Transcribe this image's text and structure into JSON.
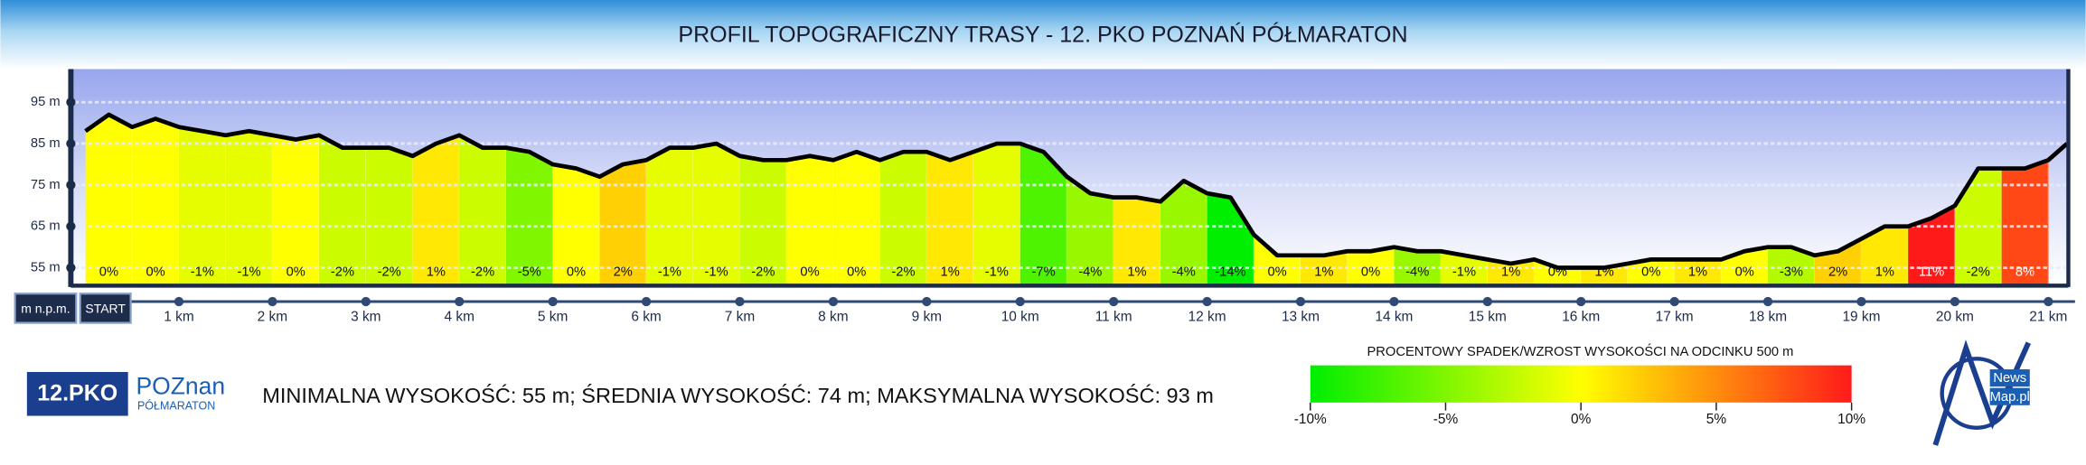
{
  "chart_data": {
    "type": "area",
    "title": "PROFIL TOPOGRAFICZNY TRASY - 12. PKO POZNAŃ PÓŁMARATON",
    "x": [
      0,
      0.25,
      0.5,
      0.75,
      1,
      1.25,
      1.5,
      1.75,
      2,
      2.25,
      2.5,
      2.75,
      3,
      3.25,
      3.5,
      3.75,
      4,
      4.25,
      4.5,
      4.75,
      5,
      5.25,
      5.5,
      5.75,
      6,
      6.25,
      6.5,
      6.75,
      7,
      7.25,
      7.5,
      7.75,
      8,
      8.25,
      8.5,
      8.75,
      9,
      9.25,
      9.5,
      9.75,
      10,
      10.25,
      10.5,
      10.75,
      11,
      11.25,
      11.5,
      11.75,
      12,
      12.25,
      12.5,
      12.75,
      13,
      13.25,
      13.5,
      13.75,
      14,
      14.25,
      14.5,
      14.75,
      15,
      15.25,
      15.5,
      15.75,
      16,
      16.25,
      16.5,
      16.75,
      17,
      17.25,
      17.5,
      17.75,
      18,
      18.25,
      18.5,
      18.75,
      19,
      19.25,
      19.5,
      19.75,
      20,
      20.25,
      20.5,
      20.75,
      21,
      21.2
    ],
    "values": [
      88,
      92,
      89,
      91,
      89,
      88,
      87,
      88,
      87,
      86,
      87,
      84,
      84,
      84,
      82,
      85,
      87,
      84,
      84,
      83,
      80,
      79,
      77,
      80,
      81,
      84,
      84,
      85,
      82,
      81,
      81,
      82,
      81,
      83,
      81,
      83,
      83,
      81,
      83,
      85,
      85,
      83,
      77,
      73,
      72,
      72,
      71,
      76,
      73,
      72,
      63,
      58,
      58,
      58,
      59,
      59,
      60,
      59,
      59,
      58,
      57,
      56,
      57,
      55,
      55,
      55,
      56,
      57,
      57,
      57,
      57,
      59,
      60,
      60,
      58,
      59,
      62,
      65,
      65,
      67,
      70,
      79,
      79,
      79,
      81,
      85
    ],
    "line_color": "#000000",
    "xlim": [
      0,
      21.2
    ],
    "xticks": [
      {
        "value": 1,
        "label": "1 km"
      },
      {
        "value": 2,
        "label": "2 km"
      },
      {
        "value": 3,
        "label": "3 km"
      },
      {
        "value": 4,
        "label": "4 km"
      },
      {
        "value": 5,
        "label": "5 km"
      },
      {
        "value": 6,
        "label": "6 km"
      },
      {
        "value": 7,
        "label": "7 km"
      },
      {
        "value": 8,
        "label": "8 km"
      },
      {
        "value": 9,
        "label": "9 km"
      },
      {
        "value": 10,
        "label": "10 km"
      },
      {
        "value": 11,
        "label": "11 km"
      },
      {
        "value": 12,
        "label": "12 km"
      },
      {
        "value": 13,
        "label": "13 km"
      },
      {
        "value": 14,
        "label": "14 km"
      },
      {
        "value": 15,
        "label": "15 km"
      },
      {
        "value": 16,
        "label": "16 km"
      },
      {
        "value": 17,
        "label": "17 km"
      },
      {
        "value": 18,
        "label": "18 km"
      },
      {
        "value": 19,
        "label": "19 km"
      },
      {
        "value": 20,
        "label": "20 km"
      },
      {
        "value": 21,
        "label": "21 km"
      }
    ],
    "ylim": [
      51,
      103
    ],
    "yticks": [
      {
        "value": 55,
        "label": "55 m"
      },
      {
        "value": 65,
        "label": "65 m"
      },
      {
        "value": 75,
        "label": "75 m"
      },
      {
        "value": 85,
        "label": "85 m"
      },
      {
        "value": 95,
        "label": "95 m"
      }
    ],
    "grid": true,
    "y_unit_label": "m n.p.m.",
    "start_label": "START",
    "segments": {
      "values": [
        0,
        0,
        -1,
        -1,
        0,
        -2,
        -2,
        1,
        -2,
        -5,
        0,
        2,
        -1,
        -1,
        -2,
        0,
        0,
        -2,
        1,
        -1,
        -7,
        -4,
        1,
        -4,
        -14,
        0,
        1,
        0,
        -4,
        -1,
        1,
        0,
        1,
        0,
        1,
        0,
        -3,
        2,
        1,
        11,
        -2,
        8
      ],
      "value_labels": [
        "0%",
        "0%",
        "-1%",
        "-1%",
        "0%",
        "-2%",
        "-2%",
        "1%",
        "-2%",
        "-5%",
        "0%",
        "2%",
        "-1%",
        "-1%",
        "-2%",
        "0%",
        "0%",
        "-2%",
        "1%",
        "-1%",
        "-7%",
        "-4%",
        "1%",
        "-4%",
        "-14%",
        "0%",
        "1%",
        "0%",
        "-4%",
        "-1%",
        "1%",
        "0%",
        "1%",
        "0%",
        "1%",
        "0%",
        "-3%",
        "2%",
        "1%",
        "11%",
        "-2%",
        "8%"
      ]
    },
    "colorscale": {
      "title": "PROCENTOWY SPADEK/WZROST WYSOKOŚCI NA ODCINKU 500 m",
      "range": [
        -10,
        10
      ],
      "colors": [
        "#00ee00",
        "#ffff00",
        "#ff1a1a"
      ],
      "ticks": [
        {
          "value": -10,
          "label": "-10%"
        },
        {
          "value": -5,
          "label": "-5%"
        },
        {
          "value": 0,
          "label": "0%"
        },
        {
          "value": 5,
          "label": "5%"
        },
        {
          "value": 10,
          "label": "10%"
        }
      ]
    },
    "summary": "MINIMALNA WYSOKOŚĆ: 55 m; ŚREDNIA WYSOKOŚĆ: 74 m; MAKSYMALNA WYSOKOŚĆ: 93 m"
  },
  "branding": {
    "event": "12.PKO",
    "logo": "POZnan",
    "logo_sub": "PÓŁMARATON",
    "publisher": [
      "News",
      "Map.pl"
    ]
  }
}
